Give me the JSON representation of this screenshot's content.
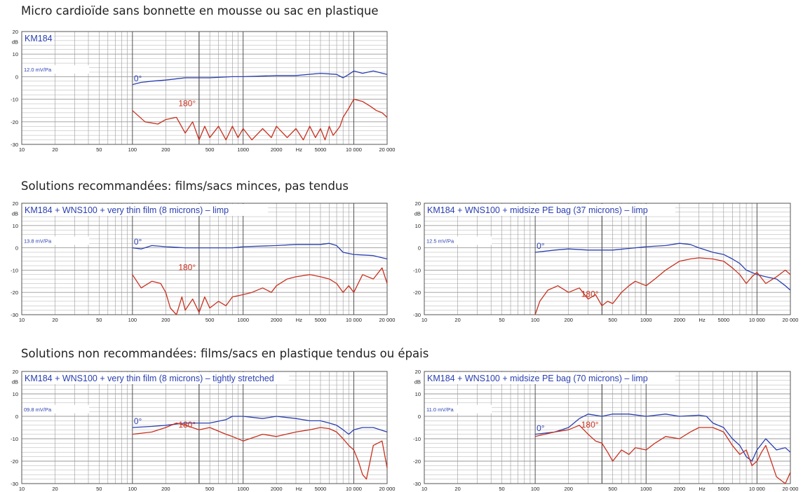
{
  "sections": [
    {
      "title": "Micro cardioïde sans bonnette en mousse ou sac en plastique"
    },
    {
      "title": "Solutions recommandées: films/sacs minces, pas tendus"
    },
    {
      "title": "Solutions non recommandées: films/sacs en plastique tendus ou épais"
    }
  ],
  "colors": {
    "series_0deg": "#2a3fb0",
    "series_180deg": "#c8301e",
    "grid": "#9a9a9a",
    "frame": "#555555"
  },
  "chart_data": [
    {
      "type": "line",
      "title": "KM184",
      "sensitivity": "12.0 mV/Pa",
      "x_scale": "log",
      "xlim": [
        10,
        20000
      ],
      "ylim": [
        -30,
        20
      ],
      "ylabel": "dB",
      "xlabel": "Hz",
      "y_ticks": [
        "20",
        "10",
        "0",
        "-10",
        "-20",
        "-30"
      ],
      "x_ticks": [
        "10",
        "20",
        "50",
        "100",
        "200",
        "500",
        "1000",
        "2000",
        "5000",
        "10 000",
        "20 000"
      ],
      "grid": true,
      "series": [
        {
          "name": "0°",
          "x": [
            100,
            120,
            150,
            200,
            300,
            500,
            800,
            1000,
            2000,
            3000,
            5000,
            7000,
            8000,
            9000,
            10000,
            12000,
            15000,
            20000
          ],
          "y": [
            -3.5,
            -2.5,
            -2,
            -1.5,
            -0.5,
            -0.5,
            0,
            0,
            0.5,
            0.5,
            1.5,
            1,
            -0.5,
            1,
            2.5,
            1.5,
            2.5,
            1
          ]
        },
        {
          "name": "180°",
          "x": [
            100,
            130,
            170,
            200,
            250,
            300,
            350,
            400,
            450,
            500,
            600,
            700,
            800,
            900,
            1000,
            1200,
            1500,
            1800,
            2000,
            2500,
            3000,
            3500,
            4000,
            4500,
            5000,
            5500,
            6000,
            6500,
            7000,
            7500,
            8000,
            9000,
            10000,
            11000,
            12000,
            14000,
            16000,
            18000,
            20000
          ],
          "y": [
            -15,
            -20,
            -21,
            -19,
            -18,
            -25,
            -20,
            -28,
            -22,
            -27,
            -22,
            -28,
            -22,
            -27,
            -23,
            -28,
            -23,
            -27,
            -22,
            -27,
            -23,
            -28,
            -22,
            -27,
            -23,
            -28,
            -22,
            -26,
            -24,
            -22,
            -18,
            -14,
            -10,
            -10.5,
            -11,
            -13,
            -15,
            -16,
            -18
          ]
        }
      ]
    },
    {
      "type": "line",
      "title": "KM184 + WNS100 + very thin film (8 microns) – limp",
      "sensitivity": "13.8 mV/Pa",
      "x_scale": "log",
      "xlim": [
        10,
        20000
      ],
      "ylim": [
        -30,
        20
      ],
      "ylabel": "dB",
      "xlabel": "Hz",
      "y_ticks": [
        "20",
        "10",
        "0",
        "-10",
        "-20",
        "-30"
      ],
      "x_ticks": [
        "10",
        "20",
        "50",
        "100",
        "200",
        "500",
        "1000",
        "2000",
        "5000",
        "10 000",
        "20 000"
      ],
      "grid": true,
      "series": [
        {
          "name": "0°",
          "x": [
            100,
            120,
            150,
            200,
            300,
            500,
            800,
            1000,
            2000,
            3000,
            5000,
            6000,
            7000,
            8000,
            10000,
            15000,
            20000
          ],
          "y": [
            0,
            -0.5,
            1,
            0.5,
            0,
            0,
            0,
            0.5,
            1,
            1.5,
            1.5,
            2,
            1,
            -2,
            -3,
            -3.5,
            -5
          ]
        },
        {
          "name": "180°",
          "x": [
            100,
            120,
            150,
            180,
            200,
            220,
            250,
            280,
            300,
            350,
            400,
            450,
            500,
            600,
            700,
            800,
            1000,
            1200,
            1500,
            1800,
            2000,
            2500,
            3000,
            4000,
            5000,
            6000,
            7000,
            8000,
            9000,
            10000,
            12000,
            15000,
            18000,
            20000
          ],
          "y": [
            -12,
            -18,
            -15,
            -16,
            -20,
            -27,
            -30,
            -22,
            -28,
            -23,
            -29,
            -22,
            -27,
            -24,
            -26,
            -22,
            -21,
            -20,
            -18,
            -20,
            -17,
            -14,
            -13,
            -12,
            -13,
            -14,
            -16,
            -20,
            -17,
            -20,
            -12,
            -14,
            -9,
            -16
          ]
        }
      ]
    },
    {
      "type": "line",
      "title": "KM184 + WNS100 + midsize PE bag (37 microns) – limp",
      "sensitivity": "12.5 mV/Pa",
      "x_scale": "log",
      "xlim": [
        10,
        20000
      ],
      "ylim": [
        -30,
        20
      ],
      "ylabel": "dB",
      "xlabel": "Hz",
      "y_ticks": [
        "20",
        "10",
        "0",
        "-10",
        "-20",
        "-30"
      ],
      "x_ticks": [
        "10",
        "20",
        "50",
        "100",
        "200",
        "500",
        "1000",
        "2000",
        "5000",
        "10 000",
        "20 000"
      ],
      "grid": true,
      "series": [
        {
          "name": "0°",
          "x": [
            100,
            150,
            200,
            300,
            500,
            800,
            1000,
            1500,
            2000,
            2500,
            3000,
            4000,
            5000,
            6000,
            7000,
            8000,
            10000,
            12000,
            15000,
            18000,
            20000
          ],
          "y": [
            -2,
            -1,
            -0.5,
            -1,
            -1,
            0,
            0.5,
            1,
            2,
            1.5,
            0,
            -2,
            -3,
            -5,
            -7,
            -10,
            -12,
            -13,
            -14,
            -17,
            -19
          ]
        },
        {
          "name": "180°",
          "x": [
            100,
            110,
            130,
            160,
            200,
            250,
            300,
            350,
            400,
            450,
            500,
            600,
            700,
            800,
            1000,
            1200,
            1500,
            2000,
            2500,
            3000,
            4000,
            5000,
            6000,
            7000,
            8000,
            9000,
            10000,
            12000,
            15000,
            18000,
            20000
          ],
          "y": [
            -30,
            -24,
            -19,
            -17,
            -20,
            -18,
            -23,
            -21,
            -26,
            -24,
            -25,
            -20,
            -17,
            -15,
            -17,
            -14,
            -10,
            -6,
            -5,
            -4.5,
            -5,
            -6,
            -9,
            -12,
            -16,
            -13,
            -11,
            -16,
            -13,
            -10,
            -12
          ]
        }
      ]
    },
    {
      "type": "line",
      "title": "KM184 + WNS100 + very thin film (8 microns) – tightly stretched",
      "sensitivity": "09.8 mV/Pa",
      "x_scale": "log",
      "xlim": [
        10,
        20000
      ],
      "ylim": [
        -30,
        20
      ],
      "ylabel": "dB",
      "xlabel": "Hz",
      "y_ticks": [
        "20",
        "10",
        "0",
        "-10",
        "-20",
        "-30"
      ],
      "x_ticks": [
        "10",
        "20",
        "50",
        "100",
        "200",
        "500",
        "1000",
        "2000",
        "5000",
        "10 000",
        "20 000"
      ],
      "grid": true,
      "series": [
        {
          "name": "0°",
          "x": [
            100,
            150,
            200,
            300,
            500,
            700,
            800,
            1000,
            1500,
            2000,
            3000,
            4000,
            5000,
            6000,
            7000,
            8000,
            9000,
            10000,
            12000,
            15000,
            20000
          ],
          "y": [
            -5,
            -4.5,
            -4,
            -3,
            -3,
            -1.5,
            0,
            0,
            -1,
            0,
            -1,
            -2,
            -2,
            -3,
            -4,
            -6,
            -8,
            -6,
            -5,
            -5,
            -7
          ]
        },
        {
          "name": "180°",
          "x": [
            100,
            150,
            200,
            250,
            300,
            400,
            500,
            700,
            800,
            1000,
            1500,
            2000,
            3000,
            4000,
            5000,
            6000,
            7000,
            8000,
            9000,
            10000,
            11000,
            12000,
            13000,
            15000,
            18000,
            20000
          ],
          "y": [
            -8,
            -7,
            -5,
            -3,
            -4,
            -6,
            -5,
            -8,
            -9,
            -11,
            -8,
            -9,
            -7,
            -6,
            -5,
            -5.5,
            -7,
            -10,
            -13,
            -15,
            -20,
            -26,
            -28,
            -13,
            -11,
            -23
          ]
        }
      ]
    },
    {
      "type": "line",
      "title": "KM184 + WNS100 + midsize PE bag (70 microns) – limp",
      "sensitivity": "11.0 mV/Pa",
      "x_scale": "log",
      "xlim": [
        10,
        20000
      ],
      "ylim": [
        -30,
        20
      ],
      "ylabel": "dB",
      "xlabel": "Hz",
      "y_ticks": [
        "20",
        "10",
        "0",
        "-10",
        "-20",
        "-30"
      ],
      "x_ticks": [
        "10",
        "20",
        "50",
        "100",
        "200",
        "500",
        "1000",
        "2000",
        "5000",
        "10 000",
        "20 000"
      ],
      "grid": true,
      "series": [
        {
          "name": "0°",
          "x": [
            100,
            150,
            200,
            250,
            300,
            400,
            500,
            700,
            1000,
            1500,
            2000,
            3000,
            3500,
            4000,
            5000,
            6000,
            7000,
            8000,
            9000,
            10000,
            12000,
            15000,
            18000,
            20000
          ],
          "y": [
            -8,
            -7,
            -5,
            -1,
            1,
            0,
            1,
            1,
            0,
            1,
            0,
            0.5,
            0,
            -3,
            -5,
            -10,
            -13,
            -18,
            -20,
            -15,
            -10,
            -15,
            -14,
            -16
          ]
        },
        {
          "name": "180°",
          "x": [
            100,
            150,
            200,
            250,
            300,
            350,
            400,
            450,
            500,
            600,
            700,
            800,
            1000,
            1200,
            1500,
            2000,
            2500,
            3000,
            4000,
            5000,
            6000,
            7000,
            8000,
            9000,
            10000,
            11000,
            12000,
            13000,
            15000,
            18000,
            20000
          ],
          "y": [
            -9,
            -7,
            -6,
            -4,
            -8,
            -11,
            -12,
            -16,
            -20,
            -15,
            -17,
            -14,
            -15,
            -12,
            -9,
            -10,
            -7,
            -5,
            -5,
            -7,
            -13,
            -17,
            -15,
            -22,
            -20,
            -16,
            -13,
            -18,
            -27,
            -30,
            -25
          ]
        }
      ]
    }
  ]
}
